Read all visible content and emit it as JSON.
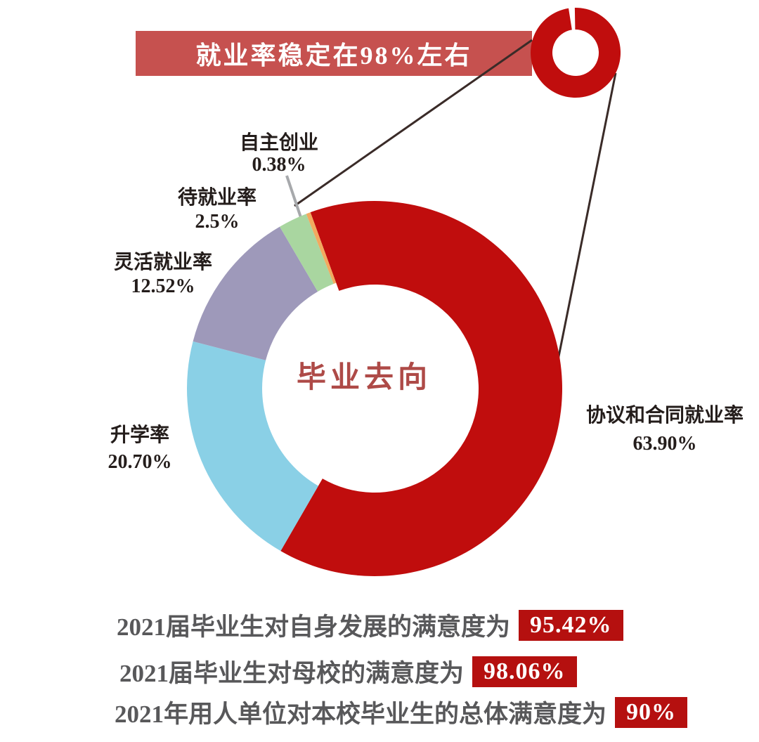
{
  "page": {
    "background": "#ffffff"
  },
  "banner": {
    "text": "就业率稳定在98%左右",
    "bg": "#c6514f",
    "text_color": "#ffffff"
  },
  "center_label": {
    "text": "毕业去向",
    "color": "#ae4a47"
  },
  "chart_data": {
    "type": "donut",
    "title": "毕业去向",
    "unit": "%",
    "start_angle_deg": -20,
    "direction": "clockwise",
    "label_text_color": "#241d1b",
    "segments": [
      {
        "key": "agreement-contract-employment",
        "label": "协议和合同就业率",
        "value": 63.9,
        "display": "63.90%",
        "color": "#c00d0d"
      },
      {
        "key": "further-study",
        "label": "升学率",
        "value": 20.7,
        "display": "20.70%",
        "color": "#8ad0e6"
      },
      {
        "key": "flexible-employment",
        "label": "灵活就业率",
        "value": 12.52,
        "display": "12.52%",
        "color": "#9e99ba"
      },
      {
        "key": "awaiting-employment",
        "label": "待就业率",
        "value": 2.5,
        "display": "2.5%",
        "color": "#a9d6a0"
      },
      {
        "key": "self-employment",
        "label": "自主创业",
        "value": 0.38,
        "display": "0.38%",
        "color": "#f2a95f"
      }
    ]
  },
  "callout": {
    "icon": "mini-donut-icon",
    "icon_color": "#c00d0d",
    "line_color": "#3a2b28",
    "leader_color": "#a7a9ac"
  },
  "footer": {
    "text_color": "#58585a",
    "badge_bg": "#b5100f",
    "badge_text_color": "#ffffff",
    "rows": [
      {
        "text": "2021届毕业生对自身发展的满意度为",
        "badge": "95.42%"
      },
      {
        "text": "2021届毕业生对母校的满意度为",
        "badge": "98.06%"
      },
      {
        "text": "2021年用人单位对本校毕业生的总体满意度为",
        "badge": "90%"
      }
    ]
  }
}
